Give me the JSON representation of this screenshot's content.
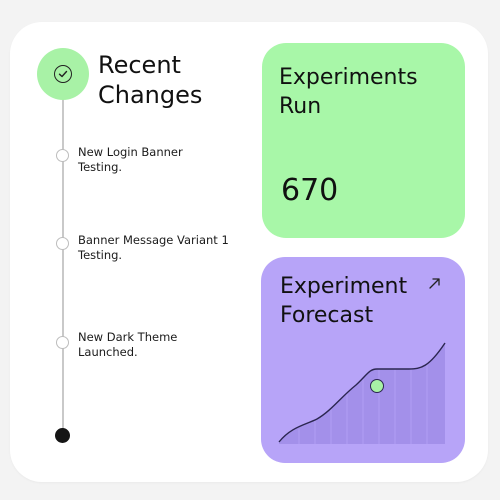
{
  "recent_changes": {
    "title_line1": "Recent",
    "title_line2": "Changes",
    "status_icon": "check-circle-icon",
    "items": [
      {
        "line1": "New Login Banner",
        "line2": "Testing."
      },
      {
        "line1": "Banner Message Variant 1",
        "line2": "Testing."
      },
      {
        "line1": "New Dark Theme",
        "line2": "Launched."
      }
    ]
  },
  "experiments_run": {
    "title_line1": "Experiments",
    "title_line2": "Run",
    "value": "670"
  },
  "experiment_forecast": {
    "title_line1": "Experiment",
    "title_line2": "Forecast",
    "icon": "arrow-up-right-icon"
  },
  "colors": {
    "green_accent": "#a8f7a8",
    "purple_accent": "#b7a4f8",
    "chart_fill": "#a18ee8",
    "highlight_point": "#a8f2a6"
  }
}
